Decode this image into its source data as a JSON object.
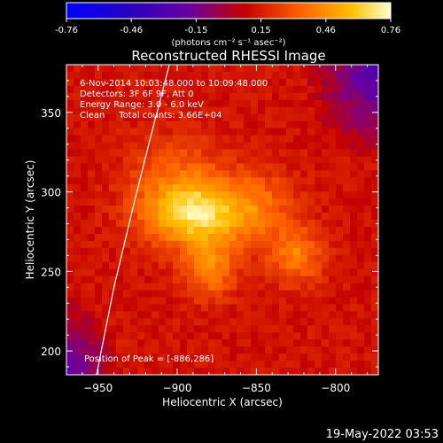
{
  "chart_data": {
    "type": "heatmap",
    "title": "Reconstructed RHESSI Image",
    "xlabel": "Heliocentric X (arcsec)",
    "ylabel": "Heliocentric Y (arcsec)",
    "xlim": [
      -970,
      -773
    ],
    "ylim": [
      185,
      380
    ],
    "x_ticks": [
      -950,
      -900,
      -850,
      -800
    ],
    "y_ticks": [
      200,
      250,
      300,
      350
    ],
    "colorbar": {
      "range": [
        -0.76,
        0.76
      ],
      "ticks": [
        "-0.76",
        "-0.46",
        "-0.15",
        "0.15",
        "0.46",
        "0.76"
      ],
      "units": "(photons cm⁻² s⁻¹ asec⁻²)"
    },
    "annotations": [
      "6-Nov-2014 10:03:48.000 to 10:09:48.000",
      "Detectors: 3F 6F 9F, Att 0",
      "Energy Range: 3.0 - 6.0 keV",
      "Clean     Total counts: 3.66E+04"
    ],
    "peak_label": "Position of Peak = [-886,286]",
    "peak": [
      -886,
      286
    ],
    "sources": [
      {
        "x": -890,
        "y": 286,
        "amp": 0.5,
        "sx": 22,
        "sy": 14
      },
      {
        "x": -880,
        "y": 252,
        "amp": 0.3,
        "sx": 12,
        "sy": 13
      },
      {
        "x": -825,
        "y": 260,
        "amp": 0.28,
        "sx": 12,
        "sy": 12
      },
      {
        "x": -850,
        "y": 290,
        "amp": 0.22,
        "sx": 18,
        "sy": 16
      },
      {
        "x": -900,
        "y": 310,
        "amp": 0.18,
        "sx": 22,
        "sy": 18
      }
    ],
    "background_level": 0.12,
    "limb_curve": [
      [
        -951,
        185
      ],
      [
        -940,
        240
      ],
      [
        -928,
        290
      ],
      [
        -918,
        330
      ],
      [
        -905,
        380
      ]
    ]
  },
  "footer": {
    "timestamp": "19-May-2022 03:53"
  }
}
